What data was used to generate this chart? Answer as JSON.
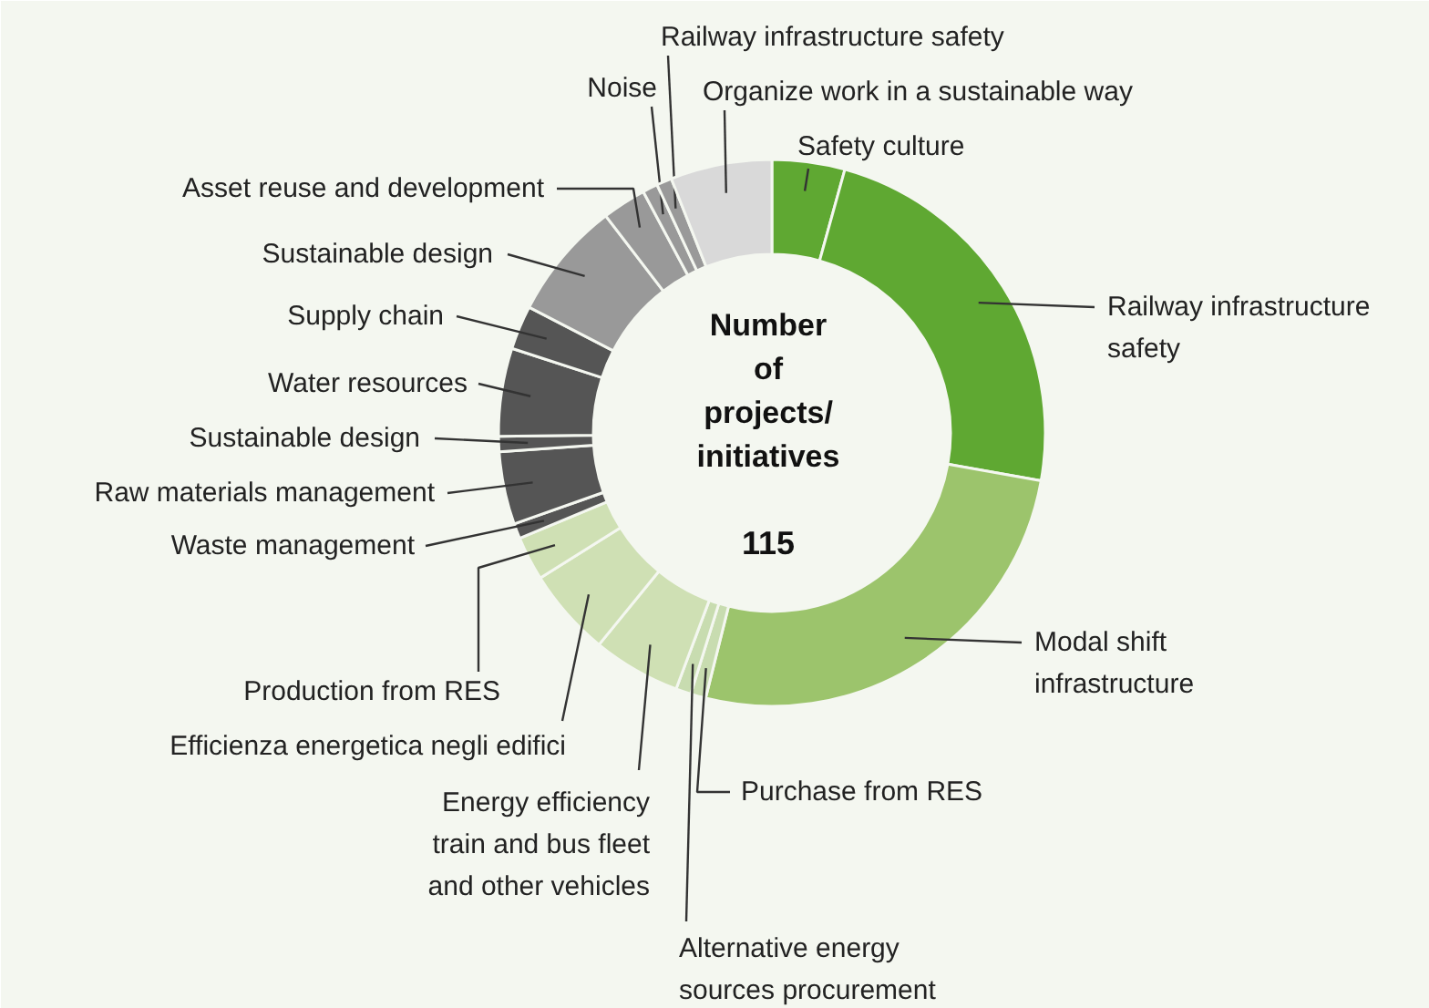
{
  "chart_data": {
    "type": "donut",
    "categories": [
      "Safety culture",
      "Railway infrastructure safety",
      "Modal shift infrastructure",
      "Purchase from RES",
      "Alternative energy sources procurement",
      "Energy efficiency train and bus fleet and other vehicles",
      "Efficienza energetica negli edifici",
      "Production from RES",
      "Waste management",
      "Raw materials management",
      "Sustainable design",
      "Water resources",
      "Supply chain",
      "Sustainable design",
      "Asset reuse and development",
      "Noise",
      "Railway infrastructure safety",
      "Organize work in a sustainable way"
    ],
    "values": [
      4.3,
      23.5,
      26.1,
      0.9,
      0.9,
      5.2,
      5.2,
      2.6,
      0.9,
      4.3,
      0.9,
      5.2,
      2.6,
      7.0,
      2.6,
      0.9,
      0.9,
      6.0
    ],
    "colors": [
      "#5fa832",
      "#5fa832",
      "#9cc46c",
      "#c8dcb0",
      "#c8dcb0",
      "#cfe0b4",
      "#cfe0b4",
      "#cfe0b4",
      "#555555",
      "#555555",
      "#555555",
      "#555555",
      "#555555",
      "#999999",
      "#999999",
      "#999999",
      "#999999",
      "#d9d9d9"
    ],
    "annotations": [
      "Number of projects/ initiatives",
      "115"
    ]
  }
}
